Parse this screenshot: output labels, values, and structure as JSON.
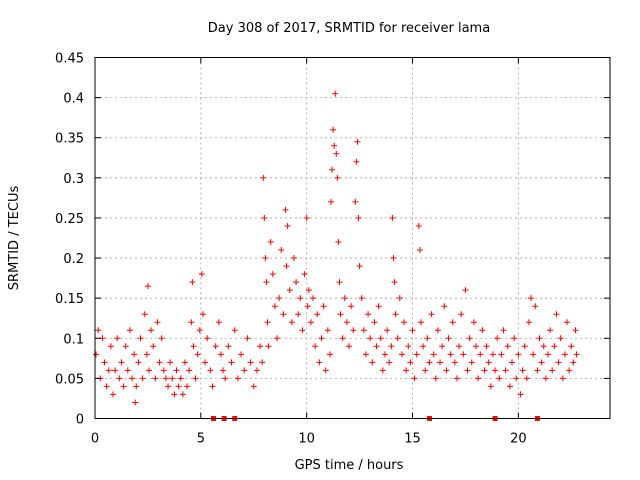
{
  "chart_data": {
    "type": "scatter",
    "title": "Day 308 of 2017, SRMTID for receiver lama",
    "xlabel": "GPS time / hours",
    "ylabel": "SRMTID / TECUs",
    "xlim": [
      0,
      24.33
    ],
    "ylim": [
      0,
      0.45
    ],
    "x_ticks": [
      0,
      5,
      10,
      15,
      20
    ],
    "x_tick_labels": [
      "0",
      "5",
      "10",
      "15",
      "20"
    ],
    "y_ticks": [
      0,
      0.05,
      0.1,
      0.15,
      0.2,
      0.25,
      0.3,
      0.35,
      0.4,
      0.45
    ],
    "y_tick_labels": [
      "0",
      "0.05",
      "0.1",
      "0.15",
      "0.2",
      "0.25",
      "0.3",
      "0.35",
      "0.4",
      "0.45"
    ],
    "grid": true,
    "marker": "+",
    "color": "#ff0000",
    "series": [
      {
        "name": "SRMTID",
        "note": "values sampled from the dense cloud of + markers",
        "points": [
          [
            0.05,
            0.08
          ],
          [
            0.15,
            0.11
          ],
          [
            0.25,
            0.05
          ],
          [
            0.35,
            0.1
          ],
          [
            0.45,
            0.07
          ],
          [
            0.55,
            0.04
          ],
          [
            0.65,
            0.06
          ],
          [
            0.75,
            0.09
          ],
          [
            0.85,
            0.03
          ],
          [
            0.95,
            0.06
          ],
          [
            1.05,
            0.1
          ],
          [
            1.15,
            0.05
          ],
          [
            1.25,
            0.07
          ],
          [
            1.35,
            0.04
          ],
          [
            1.45,
            0.09
          ],
          [
            1.55,
            0.06
          ],
          [
            1.65,
            0.11
          ],
          [
            1.75,
            0.05
          ],
          [
            1.85,
            0.08
          ],
          [
            1.95,
            0.04
          ],
          [
            2.05,
            0.07
          ],
          [
            2.15,
            0.1
          ],
          [
            2.25,
            0.05
          ],
          [
            2.35,
            0.13
          ],
          [
            2.45,
            0.08
          ],
          [
            2.5,
            0.165
          ],
          [
            2.55,
            0.06
          ],
          [
            2.65,
            0.11
          ],
          [
            2.75,
            0.09
          ],
          [
            2.85,
            0.05
          ],
          [
            2.95,
            0.12
          ],
          [
            3.05,
            0.07
          ],
          [
            3.15,
            0.1
          ],
          [
            3.25,
            0.06
          ],
          [
            3.35,
            0.05
          ],
          [
            3.45,
            0.04
          ],
          [
            3.55,
            0.07
          ],
          [
            3.65,
            0.05
          ],
          [
            3.75,
            0.03
          ],
          [
            3.85,
            0.06
          ],
          [
            3.95,
            0.04
          ],
          [
            4.05,
            0.05
          ],
          [
            4.15,
            0.03
          ],
          [
            4.25,
            0.07
          ],
          [
            4.35,
            0.04
          ],
          [
            4.45,
            0.06
          ],
          [
            4.55,
            0.12
          ],
          [
            4.6,
            0.17
          ],
          [
            4.65,
            0.09
          ],
          [
            4.75,
            0.05
          ],
          [
            4.85,
            0.08
          ],
          [
            4.95,
            0.11
          ],
          [
            5.05,
            0.18
          ],
          [
            5.1,
            0.13
          ],
          [
            5.2,
            0.07
          ],
          [
            5.3,
            0.1
          ],
          [
            5.45,
            0.06
          ],
          [
            5.55,
            0.04
          ],
          [
            5.7,
            0.09
          ],
          [
            5.85,
            0.12
          ],
          [
            5.95,
            0.08
          ],
          [
            6.05,
            0.06
          ],
          [
            6.15,
            0.05
          ],
          [
            6.3,
            0.09
          ],
          [
            6.45,
            0.07
          ],
          [
            6.6,
            0.11
          ],
          [
            6.75,
            0.05
          ],
          [
            6.9,
            0.08
          ],
          [
            7.05,
            0.06
          ],
          [
            7.2,
            0.1
          ],
          [
            7.35,
            0.07
          ],
          [
            7.5,
            0.04
          ],
          [
            7.65,
            0.06
          ],
          [
            7.8,
            0.09
          ],
          [
            7.9,
            0.07
          ],
          [
            7.95,
            0.3
          ],
          [
            8.0,
            0.25
          ],
          [
            8.05,
            0.2
          ],
          [
            8.1,
            0.17
          ],
          [
            8.15,
            0.12
          ],
          [
            8.2,
            0.09
          ],
          [
            8.3,
            0.22
          ],
          [
            8.4,
            0.18
          ],
          [
            8.5,
            0.14
          ],
          [
            8.6,
            0.1
          ],
          [
            8.7,
            0.15
          ],
          [
            8.8,
            0.21
          ],
          [
            8.9,
            0.13
          ],
          [
            9.0,
            0.26
          ],
          [
            9.05,
            0.19
          ],
          [
            9.1,
            0.24
          ],
          [
            9.2,
            0.16
          ],
          [
            9.3,
            0.12
          ],
          [
            9.4,
            0.2
          ],
          [
            9.5,
            0.17
          ],
          [
            9.6,
            0.13
          ],
          [
            9.7,
            0.15
          ],
          [
            9.8,
            0.11
          ],
          [
            9.9,
            0.18
          ],
          [
            10.0,
            0.25
          ],
          [
            10.05,
            0.14
          ],
          [
            10.1,
            0.16
          ],
          [
            10.2,
            0.12
          ],
          [
            10.3,
            0.15
          ],
          [
            10.4,
            0.09
          ],
          [
            10.5,
            0.13
          ],
          [
            10.6,
            0.07
          ],
          [
            10.7,
            0.1
          ],
          [
            10.8,
            0.14
          ],
          [
            10.9,
            0.06
          ],
          [
            11.0,
            0.11
          ],
          [
            11.1,
            0.08
          ],
          [
            11.15,
            0.27
          ],
          [
            11.2,
            0.31
          ],
          [
            11.25,
            0.36
          ],
          [
            11.3,
            0.34
          ],
          [
            11.35,
            0.405
          ],
          [
            11.4,
            0.33
          ],
          [
            11.45,
            0.3
          ],
          [
            11.5,
            0.22
          ],
          [
            11.55,
            0.17
          ],
          [
            11.6,
            0.13
          ],
          [
            11.7,
            0.1
          ],
          [
            11.8,
            0.15
          ],
          [
            11.9,
            0.12
          ],
          [
            12.0,
            0.09
          ],
          [
            12.1,
            0.14
          ],
          [
            12.2,
            0.11
          ],
          [
            12.3,
            0.27
          ],
          [
            12.35,
            0.32
          ],
          [
            12.4,
            0.345
          ],
          [
            12.45,
            0.25
          ],
          [
            12.5,
            0.19
          ],
          [
            12.6,
            0.15
          ],
          [
            12.7,
            0.11
          ],
          [
            12.8,
            0.08
          ],
          [
            12.9,
            0.13
          ],
          [
            13.0,
            0.1
          ],
          [
            13.1,
            0.07
          ],
          [
            13.2,
            0.12
          ],
          [
            13.3,
            0.09
          ],
          [
            13.4,
            0.14
          ],
          [
            13.5,
            0.1
          ],
          [
            13.6,
            0.06
          ],
          [
            13.7,
            0.08
          ],
          [
            13.8,
            0.11
          ],
          [
            13.9,
            0.07
          ],
          [
            14.0,
            0.09
          ],
          [
            14.05,
            0.25
          ],
          [
            14.1,
            0.2
          ],
          [
            14.15,
            0.17
          ],
          [
            14.2,
            0.13
          ],
          [
            14.3,
            0.1
          ],
          [
            14.4,
            0.15
          ],
          [
            14.5,
            0.08
          ],
          [
            14.6,
            0.12
          ],
          [
            14.7,
            0.06
          ],
          [
            14.8,
            0.09
          ],
          [
            14.9,
            0.07
          ],
          [
            15.0,
            0.11
          ],
          [
            15.1,
            0.05
          ],
          [
            15.2,
            0.08
          ],
          [
            15.3,
            0.24
          ],
          [
            15.35,
            0.21
          ],
          [
            15.4,
            0.12
          ],
          [
            15.5,
            0.09
          ],
          [
            15.6,
            0.06
          ],
          [
            15.7,
            0.1
          ],
          [
            15.8,
            0.07
          ],
          [
            15.9,
            0.13
          ],
          [
            16.0,
            0.08
          ],
          [
            16.1,
            0.05
          ],
          [
            16.2,
            0.11
          ],
          [
            16.3,
            0.07
          ],
          [
            16.4,
            0.09
          ],
          [
            16.5,
            0.14
          ],
          [
            16.6,
            0.06
          ],
          [
            16.7,
            0.1
          ],
          [
            16.8,
            0.08
          ],
          [
            16.9,
            0.12
          ],
          [
            17.0,
            0.07
          ],
          [
            17.1,
            0.05
          ],
          [
            17.2,
            0.09
          ],
          [
            17.3,
            0.13
          ],
          [
            17.4,
            0.08
          ],
          [
            17.5,
            0.16
          ],
          [
            17.6,
            0.06
          ],
          [
            17.7,
            0.1
          ],
          [
            17.8,
            0.07
          ],
          [
            17.9,
            0.12
          ],
          [
            18.0,
            0.09
          ],
          [
            18.1,
            0.05
          ],
          [
            18.2,
            0.08
          ],
          [
            18.3,
            0.11
          ],
          [
            18.4,
            0.06
          ],
          [
            18.5,
            0.09
          ],
          [
            18.6,
            0.07
          ],
          [
            18.7,
            0.04
          ],
          [
            18.8,
            0.08
          ],
          [
            18.9,
            0.06
          ],
          [
            19.0,
            0.1
          ],
          [
            19.1,
            0.05
          ],
          [
            19.2,
            0.08
          ],
          [
            19.3,
            0.11
          ],
          [
            19.4,
            0.06
          ],
          [
            19.5,
            0.09
          ],
          [
            19.6,
            0.04
          ],
          [
            19.7,
            0.07
          ],
          [
            19.8,
            0.1
          ],
          [
            19.9,
            0.05
          ],
          [
            20.0,
            0.08
          ],
          [
            20.1,
            0.03
          ],
          [
            20.2,
            0.06
          ],
          [
            20.3,
            0.09
          ],
          [
            20.4,
            0.05
          ],
          [
            20.5,
            0.12
          ],
          [
            20.6,
            0.15
          ],
          [
            20.7,
            0.08
          ],
          [
            20.8,
            0.14
          ],
          [
            20.9,
            0.06
          ],
          [
            21.0,
            0.1
          ],
          [
            21.1,
            0.07
          ],
          [
            21.2,
            0.09
          ],
          [
            21.3,
            0.05
          ],
          [
            21.4,
            0.08
          ],
          [
            21.5,
            0.11
          ],
          [
            21.6,
            0.06
          ],
          [
            21.7,
            0.09
          ],
          [
            21.8,
            0.13
          ],
          [
            21.9,
            0.07
          ],
          [
            22.0,
            0.1
          ],
          [
            22.1,
            0.05
          ],
          [
            22.2,
            0.08
          ],
          [
            22.3,
            0.12
          ],
          [
            22.4,
            0.06
          ],
          [
            22.5,
            0.09
          ],
          [
            22.6,
            0.07
          ],
          [
            22.7,
            0.11
          ],
          [
            22.75,
            0.08
          ],
          [
            1.9,
            0.02
          ]
        ]
      }
    ],
    "zero_markers_x": [
      5.6,
      6.1,
      6.6,
      15.8,
      18.9,
      20.9
    ]
  }
}
